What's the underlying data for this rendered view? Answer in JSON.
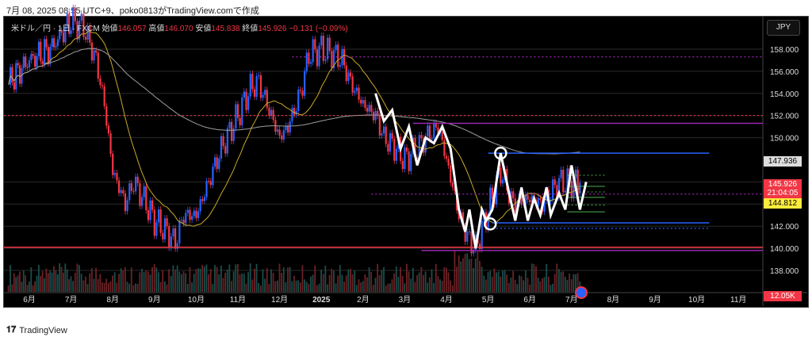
{
  "caption": "7月 08, 2025 08:55 UTC+9、poko0813がTradingView.comで作成",
  "legend": {
    "symbol": "米ドル／円 · 1日 · FXCM",
    "open_label": "始値",
    "open": "146.057",
    "high_label": "高値",
    "high": "146.070",
    "low_label": "安値",
    "low": "145.838",
    "close_label": "終値",
    "close": "145.926",
    "change": "−0.131 (−0.09%)"
  },
  "currency_button": "JPY",
  "tags": {
    "ma_value": "147.936",
    "last_price": "145.926",
    "countdown": "21:04:05",
    "ma2_value": "144.812",
    "volume": "12.05K"
  },
  "footer_logo": "TradingView",
  "colors": {
    "up": "#2962ff",
    "down": "#f23645",
    "ma_fast": "#c8a82a",
    "ma_slow": "#9e9e9e",
    "purple": "#9c27b0",
    "blue": "#2962ff"
  },
  "chart_data": {
    "type": "candlestick",
    "title": "USD/JPY Daily (FXCM)",
    "x_unit": "months since 2024-06-01",
    "ylim": [
      136.5,
      161.5
    ],
    "y_ticks": [
      "158.000",
      "156.000",
      "154.000",
      "152.000",
      "150.000",
      "142.000",
      "140.000",
      "138.000"
    ],
    "y_tick_values": [
      158,
      156,
      154,
      152,
      150,
      142,
      140,
      138
    ],
    "x_ticks": [
      "6月",
      "7月",
      "8月",
      "9月",
      "10月",
      "11月",
      "12月",
      "2025",
      "2月",
      "3月",
      "4月",
      "5月",
      "6月",
      "7月",
      "8月",
      "9月",
      "10月",
      "11月"
    ],
    "x_tick_values": [
      0,
      1,
      2,
      3,
      4,
      5,
      6,
      7,
      8,
      9,
      10,
      11,
      12,
      13,
      14,
      15,
      16,
      17
    ],
    "price_path": [
      [
        -0.5,
        155
      ],
      [
        0,
        157
      ],
      [
        0.5,
        158
      ],
      [
        1,
        160.5
      ],
      [
        1.3,
        160
      ],
      [
        1.6,
        157
      ],
      [
        1.8,
        153
      ],
      [
        2,
        147
      ],
      [
        2.3,
        144
      ],
      [
        2.5,
        146
      ],
      [
        2.8,
        144
      ],
      [
        3,
        142.5
      ],
      [
        3.3,
        141.5
      ],
      [
        3.5,
        140.5
      ],
      [
        3.7,
        143
      ],
      [
        4,
        143
      ],
      [
        4.3,
        146
      ],
      [
        4.6,
        149
      ],
      [
        5,
        152
      ],
      [
        5.3,
        154.5
      ],
      [
        5.5,
        155
      ],
      [
        5.8,
        152
      ],
      [
        6,
        150
      ],
      [
        6.2,
        151
      ],
      [
        6.5,
        154
      ],
      [
        6.7,
        157.5
      ],
      [
        7,
        158
      ],
      [
        7.3,
        157.5
      ],
      [
        7.5,
        157
      ],
      [
        7.7,
        155
      ],
      [
        8,
        153
      ],
      [
        8.3,
        152
      ],
      [
        8.5,
        150
      ],
      [
        8.8,
        149
      ],
      [
        9,
        148
      ],
      [
        9.3,
        149
      ],
      [
        9.5,
        150
      ],
      [
        9.8,
        151
      ],
      [
        10,
        148
      ],
      [
        10.3,
        143
      ],
      [
        10.5,
        141
      ],
      [
        10.7,
        140
      ],
      [
        11,
        143.5
      ],
      [
        11.3,
        147
      ],
      [
        11.6,
        144
      ],
      [
        12,
        144.5
      ],
      [
        12.3,
        144
      ],
      [
        12.7,
        146
      ],
      [
        13,
        145.9
      ],
      [
        13.2,
        145.93
      ]
    ],
    "moving_averages": [
      {
        "name": "MA fast",
        "period": 20
      },
      {
        "name": "MA slow",
        "period": 200
      }
    ],
    "zigzag": [
      [
        8.3,
        154
      ],
      [
        8.5,
        151.5
      ],
      [
        8.7,
        152.5
      ],
      [
        8.9,
        149
      ],
      [
        9.1,
        151
      ],
      [
        9.3,
        147.5
      ],
      [
        9.5,
        150
      ],
      [
        9.7,
        149.5
      ],
      [
        9.9,
        151
      ],
      [
        10.1,
        149
      ],
      [
        10.3,
        143.5
      ],
      [
        10.45,
        141.5
      ],
      [
        10.55,
        143.5
      ],
      [
        10.7,
        140
      ],
      [
        10.85,
        143.5
      ],
      [
        10.95,
        142.5
      ],
      [
        11.1,
        143.5
      ],
      [
        11.3,
        148.6
      ],
      [
        11.5,
        145
      ],
      [
        11.65,
        142.5
      ],
      [
        11.8,
        145.5
      ],
      [
        11.95,
        142.5
      ],
      [
        12.1,
        144.5
      ],
      [
        12.25,
        143
      ],
      [
        12.4,
        145.5
      ],
      [
        12.5,
        143
      ],
      [
        12.7,
        145
      ],
      [
        12.85,
        143.5
      ],
      [
        13.0,
        147.5
      ],
      [
        13.2,
        143.5
      ],
      [
        13.35,
        146
      ]
    ],
    "horizontal_lines": [
      {
        "price": 152,
        "from": -1,
        "style": "dotted",
        "color": "#f23645"
      },
      {
        "price": 157.3,
        "from": 6.3,
        "style": "dotted",
        "color": "#9c27b0"
      },
      {
        "price": 151.3,
        "from": 9.2,
        "style": "solid",
        "color": "#9c27b0"
      },
      {
        "price": 148.6,
        "from": 11.0,
        "to": 16.3,
        "style": "solid",
        "color": "#2962ff"
      },
      {
        "price": 144.9,
        "from": 8.2,
        "style": "dotted",
        "color": "#9c27b0"
      },
      {
        "price": 142.3,
        "from": 11.1,
        "to": 16.3,
        "style": "solid",
        "color": "#2962ff"
      },
      {
        "price": 141.8,
        "from": 11.1,
        "to": 16.3,
        "style": "dotted",
        "color": "#2962ff"
      },
      {
        "price": 140.1,
        "from": -1,
        "style": "solid",
        "color": "#f23645"
      },
      {
        "price": 139.8,
        "from": 9.4,
        "style": "solid",
        "color": "#9c27b0"
      }
    ],
    "circles": [
      [
        11.3,
        148.6
      ],
      [
        11.05,
        142.2
      ]
    ]
  }
}
